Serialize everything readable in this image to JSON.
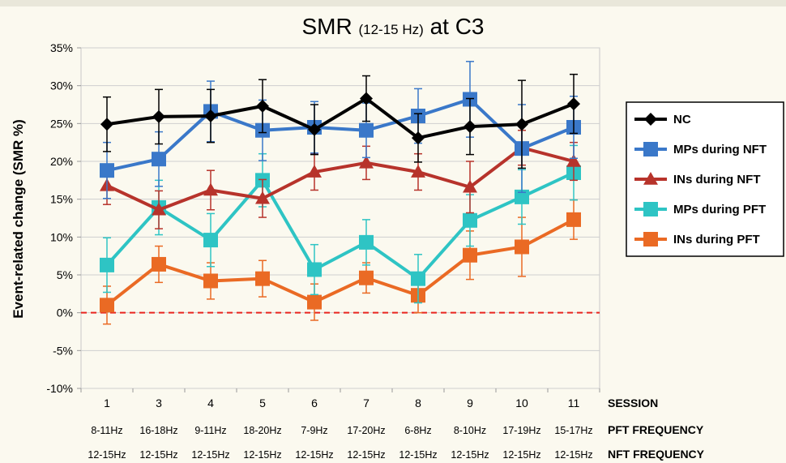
{
  "chart_data": {
    "type": "line",
    "title": "SMR",
    "title_sub": "(12-15 Hz)",
    "title_suffix": "at C3",
    "ylabel": "Event-related change (SMR %)",
    "ylim": [
      -10,
      35
    ],
    "yticks": [
      -10,
      -5,
      0,
      5,
      10,
      15,
      20,
      25,
      30,
      35
    ],
    "ytick_labels": [
      "-10%",
      "-5%",
      "0%",
      "5%",
      "10%",
      "15%",
      "20%",
      "25%",
      "30%",
      "35%"
    ],
    "grid": "horizontal",
    "legend_position": "right",
    "baseline": {
      "y": 0,
      "color": "#e8251f",
      "style": "dashed"
    },
    "categories": [
      "1",
      "3",
      "4",
      "5",
      "6",
      "7",
      "8",
      "9",
      "10",
      "11"
    ],
    "rows": [
      {
        "title": "SESSION",
        "labels": [
          "1",
          "3",
          "4",
          "5",
          "6",
          "7",
          "8",
          "9",
          "10",
          "11"
        ]
      },
      {
        "title": "PFT FREQUENCY",
        "labels": [
          "8-11Hz",
          "16-18Hz",
          "9-11Hz",
          "18-20Hz",
          "7-9Hz",
          "17-20Hz",
          "6-8Hz",
          "8-10Hz",
          "17-19Hz",
          "15-17Hz"
        ]
      },
      {
        "title": "NFT FREQUENCY",
        "labels": [
          "12-15Hz",
          "12-15Hz",
          "12-15Hz",
          "12-15Hz",
          "12-15Hz",
          "12-15Hz",
          "12-15Hz",
          "12-15Hz",
          "12-15Hz",
          "12-15Hz"
        ]
      }
    ],
    "series": [
      {
        "name": "NC",
        "color": "#000000",
        "marker": "diamond",
        "values": [
          24.9,
          25.9,
          26.0,
          27.3,
          24.2,
          28.3,
          23.1,
          24.6,
          24.9,
          27.6
        ],
        "errors": [
          3.6,
          3.6,
          3.5,
          3.5,
          3.3,
          3.0,
          3.2,
          3.7,
          5.8,
          3.9
        ]
      },
      {
        "name": "MPs during NFT",
        "color": "#3a78c9",
        "marker": "square",
        "values": [
          18.8,
          20.3,
          26.6,
          24.1,
          24.5,
          24.1,
          26.0,
          28.2,
          21.7,
          24.5
        ],
        "errors": [
          3.7,
          3.6,
          4.0,
          4.0,
          3.4,
          3.6,
          3.6,
          5.0,
          5.8,
          4.1
        ]
      },
      {
        "name": "INs during NFT",
        "color": "#b7332b",
        "marker": "triangle",
        "values": [
          16.8,
          13.6,
          16.2,
          15.1,
          18.6,
          19.8,
          18.6,
          16.6,
          21.8,
          20.0
        ],
        "errors": [
          2.5,
          2.5,
          2.6,
          2.5,
          2.4,
          2.2,
          2.4,
          3.4,
          2.3,
          2.5
        ]
      },
      {
        "name": "MPs during PFT",
        "color": "#2ec4c4",
        "marker": "square",
        "values": [
          6.3,
          13.9,
          9.6,
          17.5,
          5.7,
          9.3,
          4.5,
          12.2,
          15.3,
          18.5
        ],
        "errors": [
          3.6,
          3.6,
          3.5,
          3.5,
          3.3,
          3.0,
          3.2,
          3.4,
          3.6,
          3.6
        ]
      },
      {
        "name": "INs during PFT",
        "color": "#ea6a24",
        "marker": "square",
        "values": [
          1.0,
          6.4,
          4.2,
          4.5,
          1.4,
          4.6,
          2.3,
          7.6,
          8.7,
          12.3
        ],
        "errors": [
          2.5,
          2.4,
          2.4,
          2.4,
          2.4,
          2.0,
          2.3,
          3.2,
          3.9,
          2.6
        ]
      }
    ]
  }
}
